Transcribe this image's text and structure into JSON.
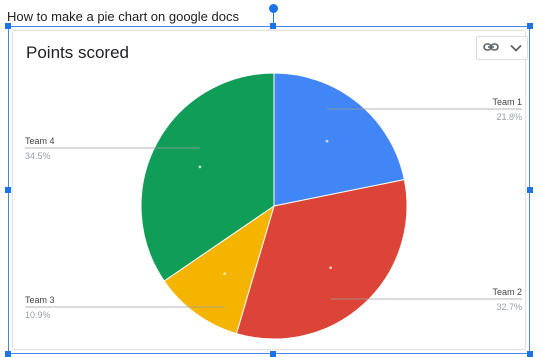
{
  "doc": {
    "caption": "How to make a pie chart on google docs"
  },
  "chart_data": {
    "type": "pie",
    "title": "Points scored",
    "slices": [
      {
        "label": "Team 1",
        "percent": 21.8,
        "display": "21.8%",
        "color": "#4285f4",
        "side": "right"
      },
      {
        "label": "Team 2",
        "percent": 32.7,
        "display": "32.7%",
        "color": "#db4437",
        "side": "right"
      },
      {
        "label": "Team 3",
        "percent": 10.9,
        "display": "10.9%",
        "color": "#f4b400",
        "side": "left"
      },
      {
        "label": "Team 4",
        "percent": 34.5,
        "display": "34.5%",
        "color": "#0f9d58",
        "side": "left"
      }
    ],
    "legend": "labeled slices"
  },
  "toolbar": {
    "link_icon": "link-icon",
    "dropdown_icon": "chevron-down-icon"
  },
  "colors": {
    "selection": "#1a73e8"
  }
}
